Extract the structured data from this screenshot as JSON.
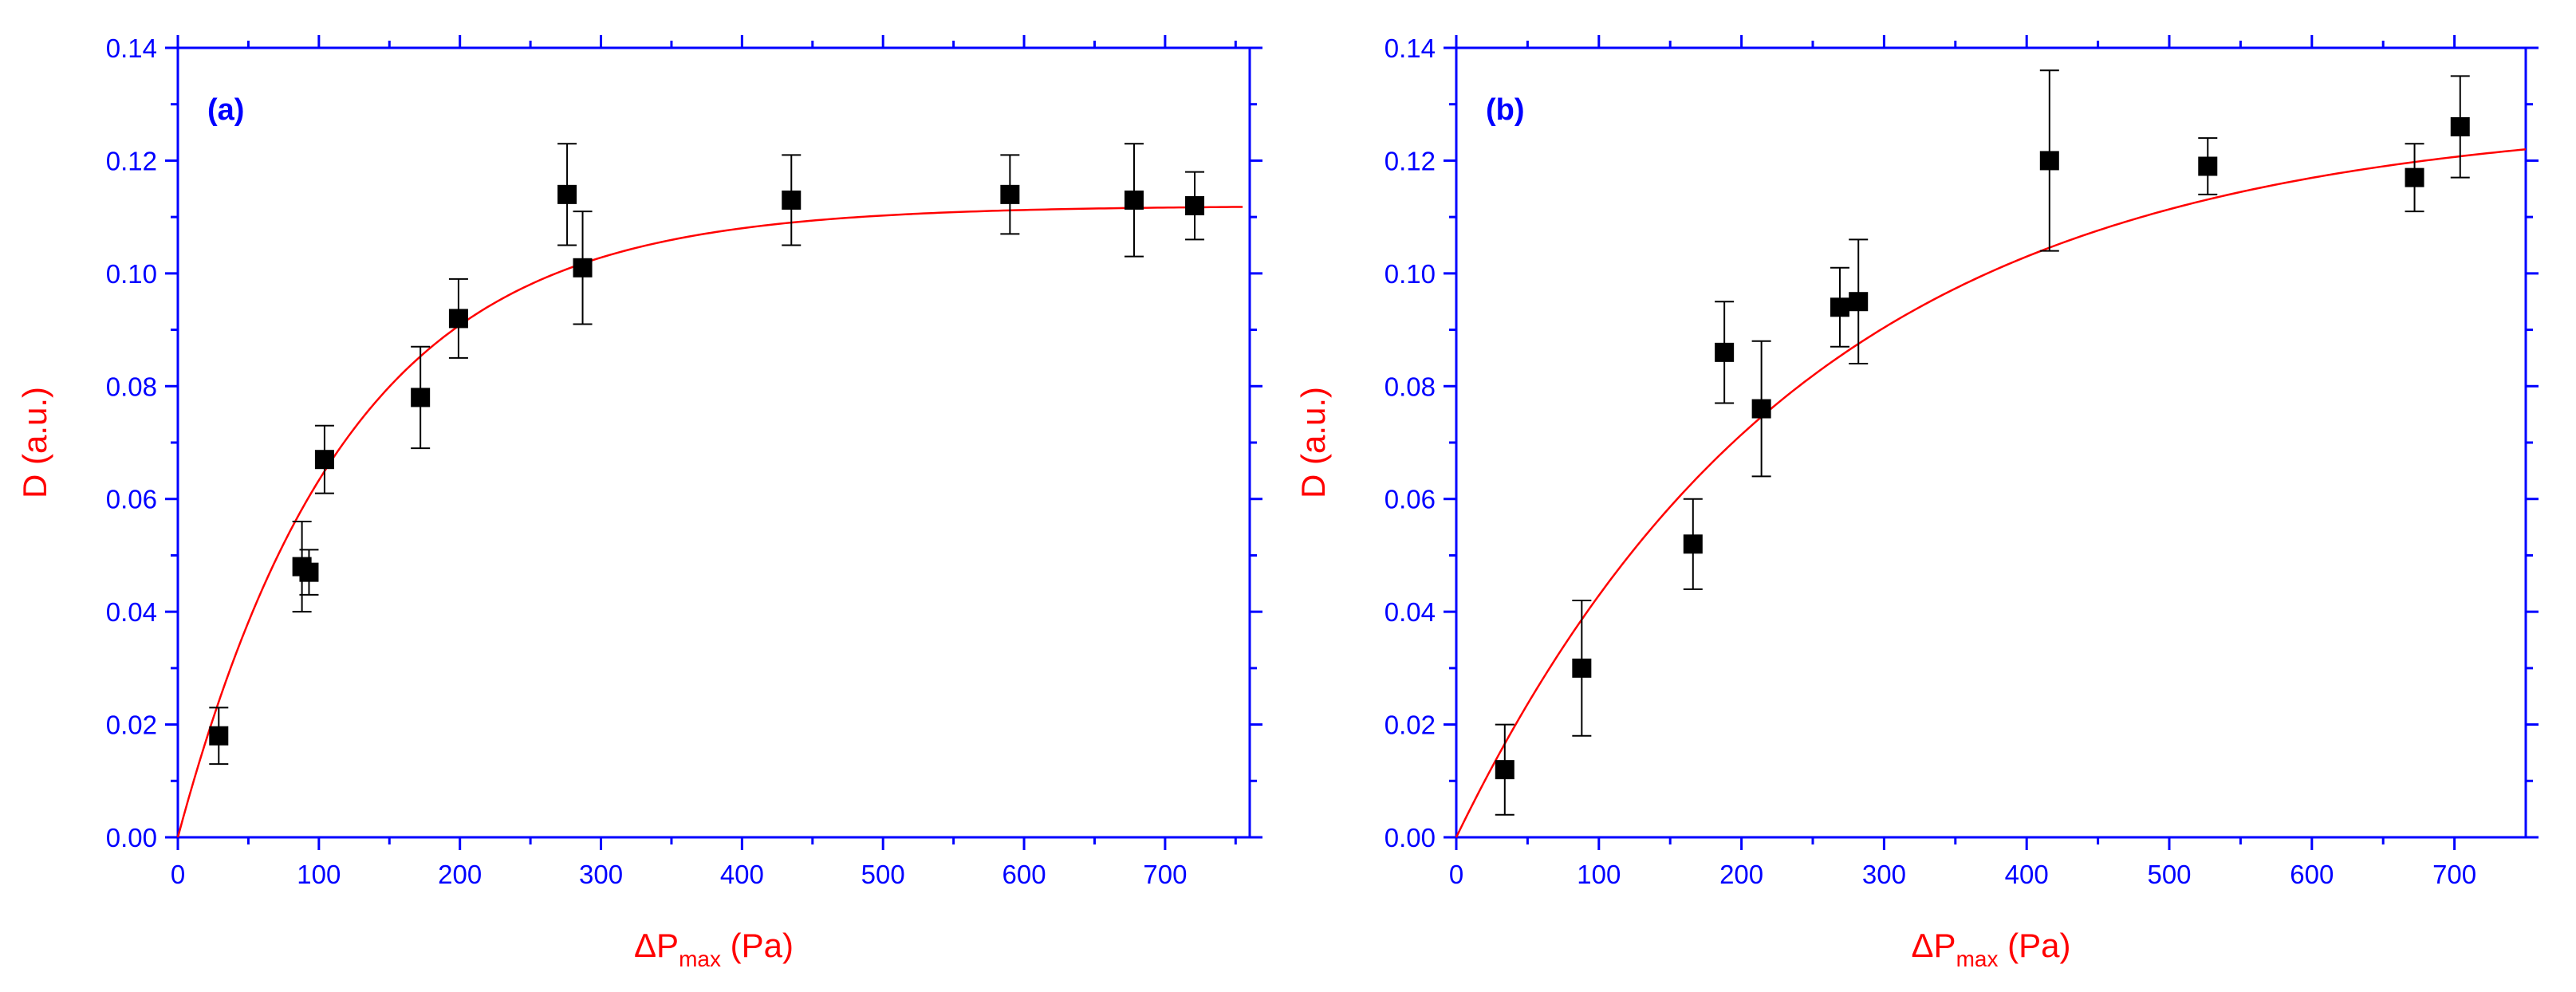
{
  "colors": {
    "axis": "#0000ff",
    "fit": "#ff0000",
    "marker": "#000000",
    "label": "#ff0000"
  },
  "chart_data": [
    {
      "type": "scatter",
      "panel_label": "(a)",
      "xlabel_main": "ΔP",
      "xlabel_sub": "max",
      "xlabel_unit": "(Pa)",
      "ylabel": "D (a.u.)",
      "xlim": [
        0,
        760
      ],
      "ylim": [
        0,
        0.14
      ],
      "xticks": [
        0,
        100,
        200,
        300,
        400,
        500,
        600,
        700
      ],
      "xtick_labels": [
        "0",
        "100",
        "200",
        "300",
        "400",
        "500",
        "600",
        "700"
      ],
      "yticks": [
        0,
        0.02,
        0.04,
        0.06,
        0.08,
        0.1,
        0.12,
        0.14
      ],
      "ytick_labels": [
        "0.00",
        "0.02",
        "0.04",
        "0.06",
        "0.08",
        "0.10",
        "0.12",
        "0.14"
      ],
      "points": [
        {
          "x": 29,
          "y": 0.018,
          "err_low": 0.005,
          "err_high": 0.005
        },
        {
          "x": 88,
          "y": 0.048,
          "err_low": 0.008,
          "err_high": 0.008
        },
        {
          "x": 93,
          "y": 0.047,
          "err_low": 0.004,
          "err_high": 0.004
        },
        {
          "x": 104,
          "y": 0.067,
          "err_low": 0.006,
          "err_high": 0.006
        },
        {
          "x": 172,
          "y": 0.078,
          "err_low": 0.009,
          "err_high": 0.009
        },
        {
          "x": 199,
          "y": 0.092,
          "err_low": 0.007,
          "err_high": 0.007
        },
        {
          "x": 276,
          "y": 0.114,
          "err_low": 0.009,
          "err_high": 0.009
        },
        {
          "x": 287,
          "y": 0.101,
          "err_low": 0.01,
          "err_high": 0.01
        },
        {
          "x": 435,
          "y": 0.113,
          "err_low": 0.008,
          "err_high": 0.008
        },
        {
          "x": 590,
          "y": 0.114,
          "err_low": 0.007,
          "err_high": 0.007
        },
        {
          "x": 678,
          "y": 0.113,
          "err_low": 0.01,
          "err_high": 0.01
        },
        {
          "x": 721,
          "y": 0.112,
          "err_low": 0.006,
          "err_high": 0.006
        }
      ],
      "fit": {
        "model": "y = A*(1 - exp(-x/t))",
        "A": 0.112,
        "t": 120,
        "x_range": [
          0,
          755
        ]
      }
    },
    {
      "type": "scatter",
      "panel_label": "(b)",
      "xlabel_main": "ΔP",
      "xlabel_sub": "max",
      "xlabel_unit": "(Pa)",
      "ylabel": "D (a.u.)",
      "xlim": [
        0,
        750
      ],
      "ylim": [
        0,
        0.14
      ],
      "xticks": [
        0,
        100,
        200,
        300,
        400,
        500,
        600,
        700
      ],
      "xtick_labels": [
        "0",
        "100",
        "200",
        "300",
        "400",
        "500",
        "600",
        "700"
      ],
      "yticks": [
        0,
        0.02,
        0.04,
        0.06,
        0.08,
        0.1,
        0.12,
        0.14
      ],
      "ytick_labels": [
        "0.00",
        "0.02",
        "0.04",
        "0.06",
        "0.08",
        "0.10",
        "0.12",
        "0.14"
      ],
      "points": [
        {
          "x": 34,
          "y": 0.012,
          "err_low": 0.008,
          "err_high": 0.008
        },
        {
          "x": 88,
          "y": 0.03,
          "err_low": 0.012,
          "err_high": 0.012
        },
        {
          "x": 166,
          "y": 0.052,
          "err_low": 0.008,
          "err_high": 0.008
        },
        {
          "x": 188,
          "y": 0.086,
          "err_low": 0.009,
          "err_high": 0.009
        },
        {
          "x": 214,
          "y": 0.076,
          "err_low": 0.012,
          "err_high": 0.012
        },
        {
          "x": 269,
          "y": 0.094,
          "err_low": 0.007,
          "err_high": 0.007
        },
        {
          "x": 282,
          "y": 0.095,
          "err_low": 0.011,
          "err_high": 0.011
        },
        {
          "x": 416,
          "y": 0.12,
          "err_low": 0.016,
          "err_high": 0.016
        },
        {
          "x": 527,
          "y": 0.119,
          "err_low": 0.005,
          "err_high": 0.005
        },
        {
          "x": 672,
          "y": 0.117,
          "err_low": 0.006,
          "err_high": 0.006
        },
        {
          "x": 704,
          "y": 0.126,
          "err_low": 0.009,
          "err_high": 0.009
        }
      ],
      "fit": {
        "model": "y = A*(1 - exp(-x/t))",
        "A": 0.128,
        "t": 245,
        "x_range": [
          0,
          750
        ]
      }
    }
  ]
}
